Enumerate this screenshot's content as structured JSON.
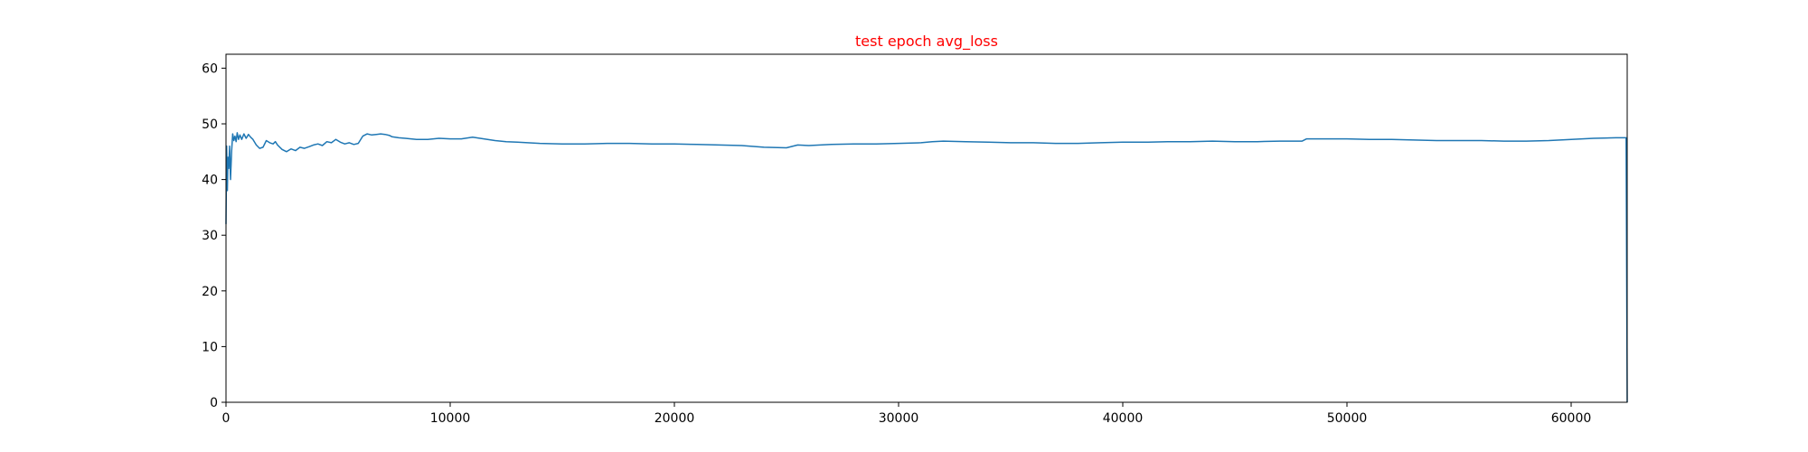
{
  "chart_data": {
    "type": "line",
    "title": "test epoch avg_loss",
    "title_color": "#ff0000",
    "xlabel": "",
    "ylabel": "",
    "xlim": [
      0,
      62500
    ],
    "ylim": [
      0,
      62.5
    ],
    "xticks": [
      0,
      10000,
      20000,
      30000,
      40000,
      50000,
      60000
    ],
    "yticks": [
      0,
      10,
      20,
      30,
      40,
      50,
      60
    ],
    "grid": false,
    "series": [
      {
        "color": "#1f77b4",
        "x": [
          0,
          30,
          60,
          90,
          120,
          160,
          200,
          250,
          300,
          350,
          400,
          450,
          500,
          560,
          620,
          700,
          800,
          900,
          1000,
          1100,
          1200,
          1350,
          1500,
          1650,
          1800,
          1950,
          2100,
          2200,
          2300,
          2500,
          2700,
          2900,
          3100,
          3300,
          3500,
          3700,
          3900,
          4100,
          4300,
          4500,
          4700,
          4900,
          5100,
          5300,
          5500,
          5700,
          5900,
          6100,
          6300,
          6500,
          6700,
          6900,
          7100,
          7300,
          7400,
          7700,
          8000,
          8500,
          9000,
          9500,
          10000,
          10500,
          11000,
          11500,
          12000,
          12500,
          13000,
          14000,
          15000,
          16000,
          17000,
          18000,
          19000,
          20000,
          21000,
          22000,
          23000,
          24000,
          25000,
          25500,
          26000,
          27000,
          28000,
          29000,
          30000,
          31000,
          31500,
          32000,
          33000,
          34000,
          35000,
          36000,
          37000,
          38000,
          39000,
          40000,
          41000,
          42000,
          43000,
          44000,
          45000,
          46000,
          47000,
          48000,
          48200,
          49000,
          50000,
          51000,
          52000,
          53000,
          54000,
          55000,
          56000,
          57000,
          58000,
          59000,
          60000,
          61000,
          62000,
          62450,
          62500
        ],
        "y": [
          32,
          46,
          38,
          44,
          42,
          46,
          40,
          45,
          48.2,
          47,
          47.8,
          46.8,
          48.4,
          47.2,
          48,
          47.2,
          48.2,
          47.4,
          48.1,
          47.6,
          47.2,
          46.2,
          45.6,
          45.8,
          47,
          46.6,
          46.4,
          46.8,
          46.2,
          45.4,
          45,
          45.5,
          45.2,
          45.8,
          45.6,
          45.9,
          46.2,
          46.4,
          46.1,
          46.8,
          46.6,
          47.2,
          46.7,
          46.4,
          46.6,
          46.3,
          46.5,
          47.8,
          48.2,
          48,
          48.1,
          48.2,
          48.1,
          47.9,
          47.7,
          47.5,
          47.4,
          47.2,
          47.2,
          47.4,
          47.3,
          47.3,
          47.6,
          47.3,
          47,
          46.8,
          46.7,
          46.5,
          46.4,
          46.4,
          46.5,
          46.5,
          46.4,
          46.4,
          46.3,
          46.2,
          46.1,
          45.8,
          45.7,
          46.2,
          46.1,
          46.3,
          46.4,
          46.4,
          46.5,
          46.6,
          46.8,
          46.9,
          46.8,
          46.7,
          46.6,
          46.6,
          46.5,
          46.5,
          46.6,
          46.7,
          46.7,
          46.8,
          46.8,
          46.9,
          46.8,
          46.8,
          46.9,
          46.9,
          47.3,
          47.3,
          47.3,
          47.2,
          47.2,
          47.1,
          47,
          47,
          47,
          46.9,
          46.9,
          47,
          47.2,
          47.4,
          47.5,
          47.5,
          0
        ]
      }
    ]
  }
}
